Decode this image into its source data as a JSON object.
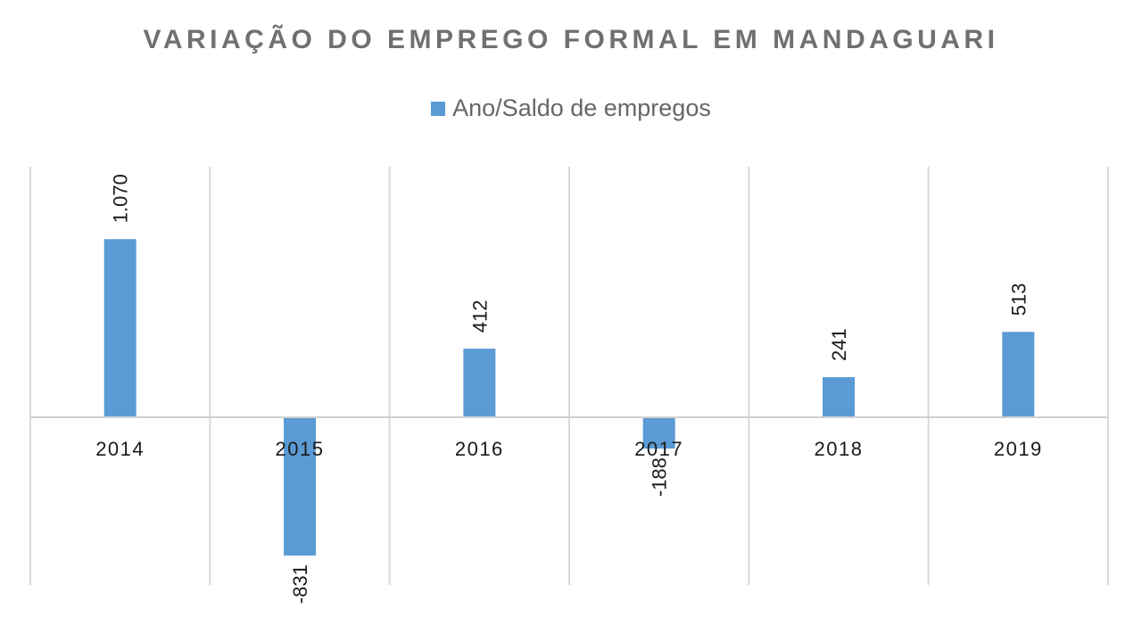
{
  "chart_data": {
    "type": "bar",
    "title": "VARIAÇÃO DO EMPREGO FORMAL EM MANDAGUARI",
    "categories": [
      "2014",
      "2015",
      "2016",
      "2017",
      "2018",
      "2019"
    ],
    "series": [
      {
        "name": "Ano/Saldo de empregos",
        "values": [
          1070,
          -831,
          412,
          -188,
          241,
          513
        ],
        "data_labels": [
          "1.070",
          "-831",
          "412",
          "-188",
          "241",
          "513"
        ],
        "color": "#5b9bd5"
      }
    ],
    "xlabel": "",
    "ylabel": "",
    "ylim": [
      -1000,
      1500
    ],
    "grid": "vertical category separators",
    "legend_position": "top-center"
  }
}
